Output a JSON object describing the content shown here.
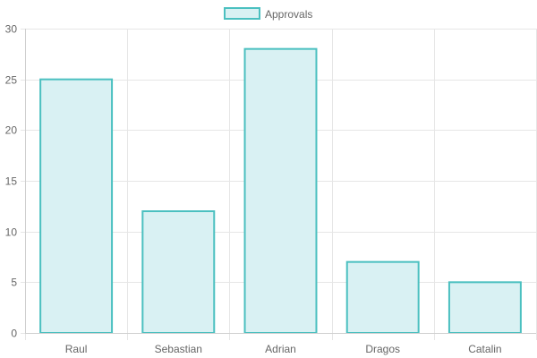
{
  "chart_data": {
    "type": "bar",
    "categories": [
      "Raul",
      "Sebastian",
      "Adrian",
      "Dragos",
      "Catalin"
    ],
    "series": [
      {
        "name": "Approvals",
        "values": [
          25,
          12,
          28,
          7,
          5
        ]
      }
    ],
    "title": "",
    "xlabel": "",
    "ylabel": "",
    "ylim": [
      0,
      30
    ],
    "yticks": [
      "0",
      "5",
      "10",
      "15",
      "20",
      "25",
      "30"
    ],
    "grid": true,
    "legend_position": "top",
    "colors": {
      "bar_fill": "#d9f1f3",
      "bar_stroke": "#4bc0c0",
      "grid": "#e6e6e6",
      "axis": "#cfcfcf",
      "text": "#666666"
    }
  }
}
